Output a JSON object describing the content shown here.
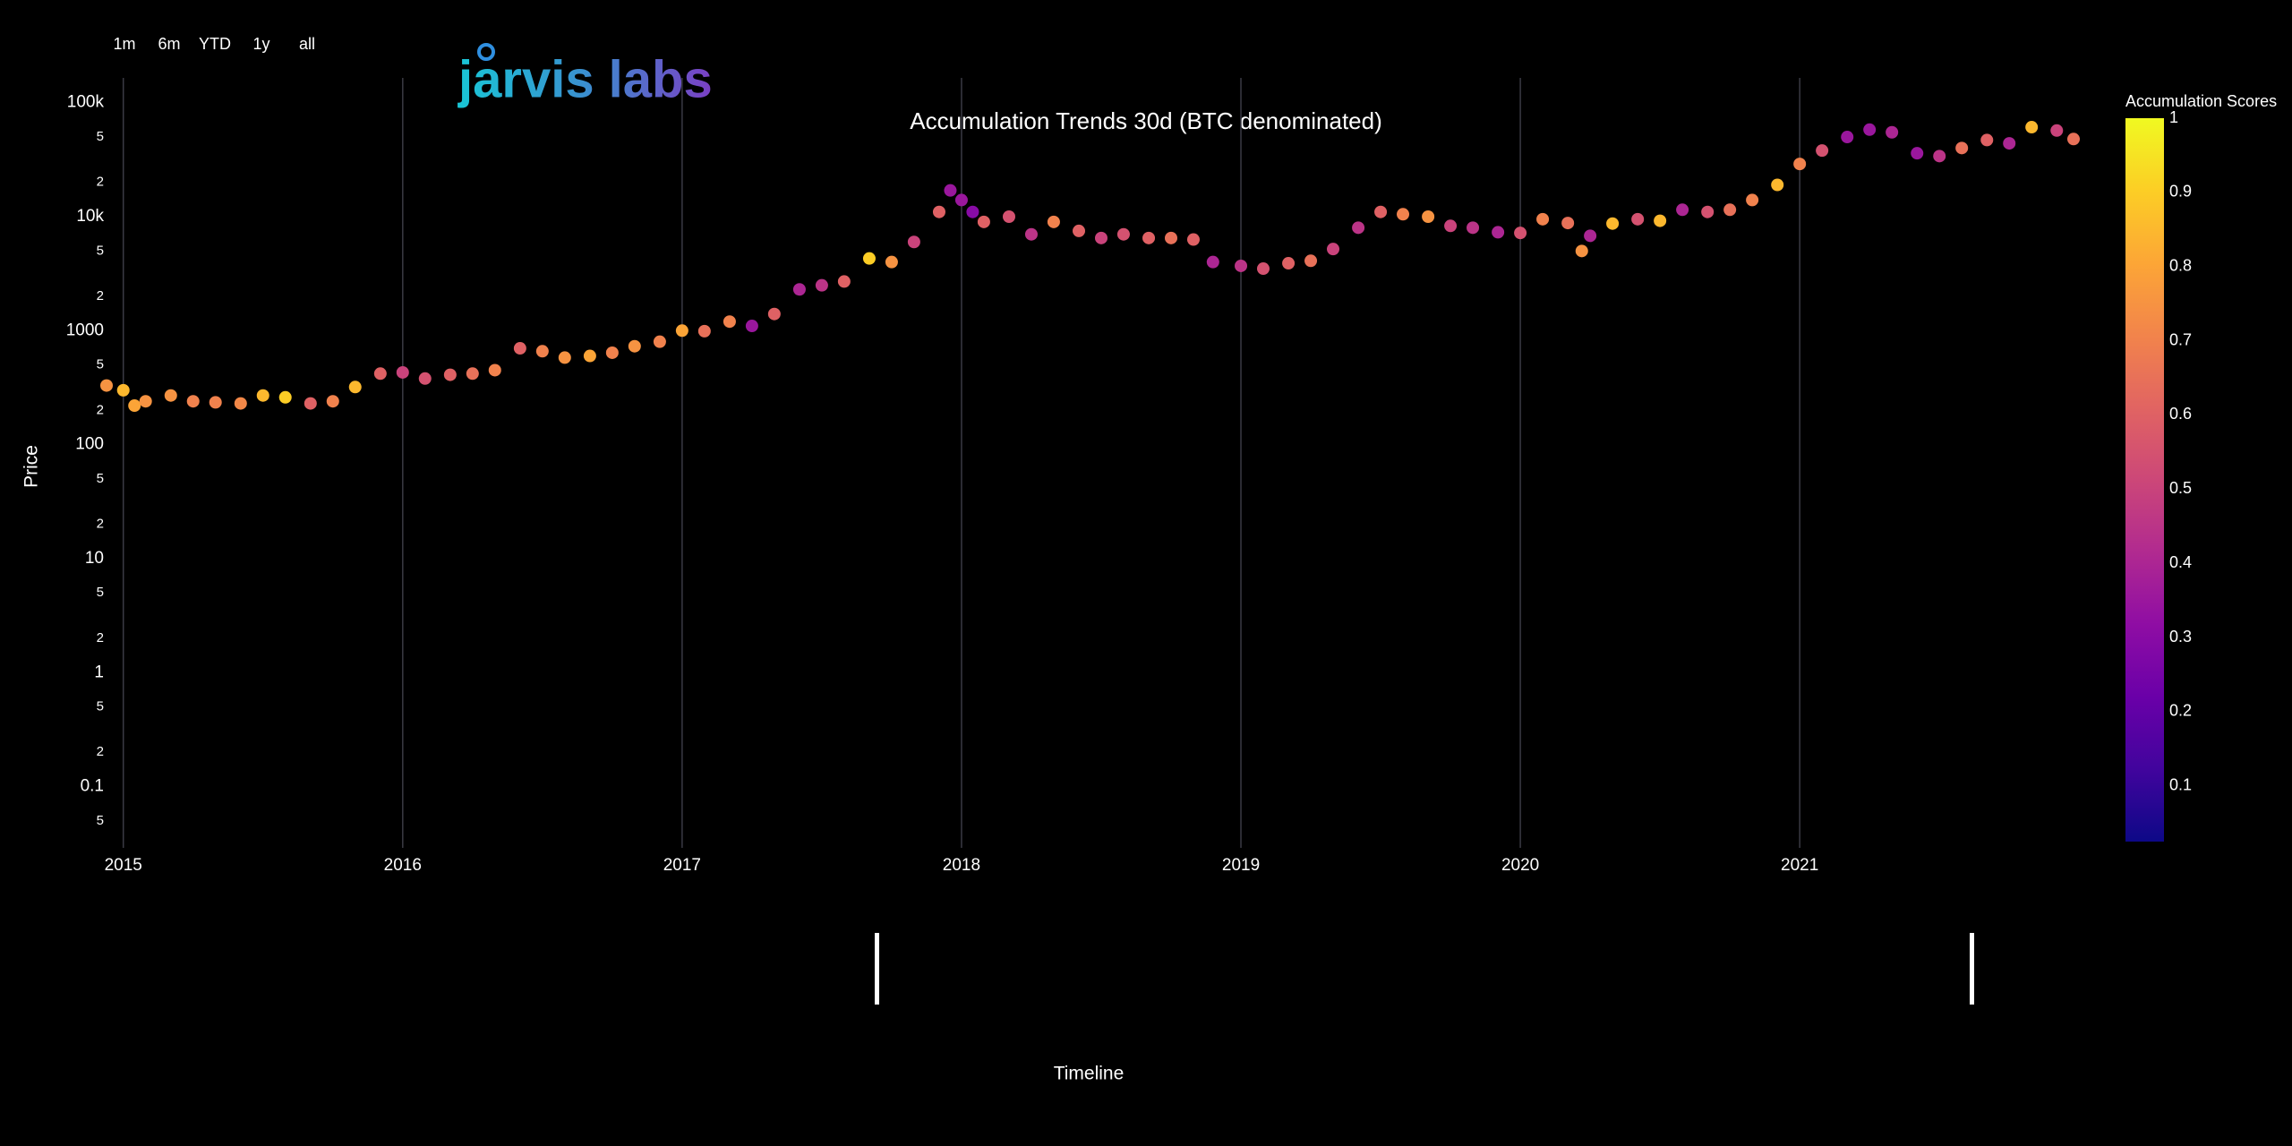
{
  "chart_data": {
    "type": "scatter",
    "title": "Accumulation Trends 30d (BTC denominated)",
    "logo": "jarvis labs",
    "range_buttons": [
      "1m",
      "6m",
      "YTD",
      "1y",
      "all"
    ],
    "y_label": "Price",
    "x_label": "Timeline",
    "log_y": true,
    "grid_x": true,
    "xlim": [
      2014.94,
      2021.98
    ],
    "xticks": [
      2015,
      2016,
      2017,
      2018,
      2019,
      2020,
      2021
    ],
    "ylim": [
      0.029,
      165000
    ],
    "yticks": [
      {
        "value": 100000,
        "label": "100k"
      },
      {
        "value": 50000,
        "label": "5"
      },
      {
        "value": 20000,
        "label": "2"
      },
      {
        "value": 10000,
        "label": "10k"
      },
      {
        "value": 5000,
        "label": "5"
      },
      {
        "value": 2000,
        "label": "2"
      },
      1000,
      {
        "value": 500,
        "label": "5"
      },
      {
        "value": 200,
        "label": "2"
      },
      100,
      {
        "value": 50,
        "label": "5"
      },
      {
        "value": 20,
        "label": "2"
      },
      10,
      5,
      2,
      1,
      {
        "value": 0.5,
        "label": "5"
      },
      {
        "value": 0.2,
        "label": "2"
      },
      0.1,
      {
        "value": 0.05,
        "label": "5"
      }
    ],
    "x": [
      2014.94,
      2015.0,
      2015.04,
      2015.08,
      2015.17,
      2015.25,
      2015.33,
      2015.42,
      2015.5,
      2015.58,
      2015.67,
      2015.75,
      2015.83,
      2015.92,
      2016.0,
      2016.08,
      2016.17,
      2016.25,
      2016.33,
      2016.42,
      2016.5,
      2016.58,
      2016.67,
      2016.75,
      2016.83,
      2016.92,
      2017.0,
      2017.08,
      2017.17,
      2017.25,
      2017.33,
      2017.42,
      2017.5,
      2017.58,
      2017.67,
      2017.75,
      2017.83,
      2017.92,
      2017.96,
      2018.0,
      2018.04,
      2018.08,
      2018.17,
      2018.25,
      2018.33,
      2018.42,
      2018.5,
      2018.58,
      2018.67,
      2018.75,
      2018.83,
      2018.9,
      2019.0,
      2019.08,
      2019.17,
      2019.25,
      2019.33,
      2019.42,
      2019.5,
      2019.58,
      2019.67,
      2019.75,
      2019.83,
      2019.92,
      2020.0,
      2020.08,
      2020.17,
      2020.22,
      2020.25,
      2020.33,
      2020.42,
      2020.5,
      2020.58,
      2020.67,
      2020.75,
      2020.83,
      2020.92,
      2021.0,
      2021.08,
      2021.17,
      2021.25,
      2021.33,
      2021.42,
      2021.5,
      2021.58,
      2021.67,
      2021.75,
      2021.83,
      2021.92,
      2021.98
    ],
    "values": [
      330,
      300,
      220,
      240,
      270,
      240,
      235,
      230,
      270,
      260,
      230,
      240,
      320,
      420,
      430,
      380,
      410,
      420,
      450,
      700,
      660,
      580,
      600,
      640,
      730,
      800,
      1000,
      990,
      1200,
      1100,
      1400,
      2300,
      2500,
      2700,
      4300,
      4000,
      6000,
      11000,
      17000,
      14000,
      11000,
      9000,
      10000,
      7000,
      9000,
      7500,
      6500,
      7000,
      6500,
      6500,
      6300,
      4000,
      3700,
      3500,
      3900,
      4100,
      5200,
      8000,
      11000,
      10500,
      10000,
      8300,
      8000,
      7300,
      7200,
      9500,
      8800,
      5000,
      6800,
      8700,
      9500,
      9200,
      11500,
      11000,
      11500,
      14000,
      19000,
      29000,
      38000,
      50000,
      58000,
      55000,
      36000,
      34000,
      40000,
      47000,
      44000,
      61000,
      57000,
      48000
    ],
    "scores": [
      0.75,
      0.85,
      0.8,
      0.75,
      0.75,
      0.7,
      0.7,
      0.72,
      0.85,
      0.9,
      0.6,
      0.7,
      0.85,
      0.6,
      0.5,
      0.55,
      0.6,
      0.65,
      0.7,
      0.6,
      0.7,
      0.75,
      0.8,
      0.7,
      0.75,
      0.7,
      0.8,
      0.65,
      0.7,
      0.35,
      0.6,
      0.4,
      0.45,
      0.6,
      0.9,
      0.75,
      0.5,
      0.6,
      0.35,
      0.35,
      0.3,
      0.6,
      0.55,
      0.45,
      0.7,
      0.6,
      0.5,
      0.55,
      0.6,
      0.65,
      0.6,
      0.4,
      0.45,
      0.55,
      0.6,
      0.65,
      0.5,
      0.45,
      0.6,
      0.7,
      0.75,
      0.5,
      0.45,
      0.4,
      0.55,
      0.7,
      0.65,
      0.75,
      0.4,
      0.85,
      0.55,
      0.85,
      0.4,
      0.55,
      0.65,
      0.7,
      0.85,
      0.7,
      0.55,
      0.35,
      0.35,
      0.4,
      0.35,
      0.45,
      0.65,
      0.6,
      0.4,
      0.85,
      0.5,
      0.65
    ],
    "colorbar": {
      "title": "Accumulation Scores",
      "lim": [
        0.025,
        1
      ],
      "ticks": [
        0.1,
        0.2,
        0.3,
        0.4,
        0.5,
        0.6,
        0.7,
        0.8,
        0.9,
        1
      ],
      "colorscale": [
        "#0d0887",
        "#41049d",
        "#6a00a8",
        "#8f0da4",
        "#b12a90",
        "#cc4778",
        "#e16462",
        "#f2844b",
        "#fca636",
        "#fcce25",
        "#f0f921"
      ]
    }
  }
}
